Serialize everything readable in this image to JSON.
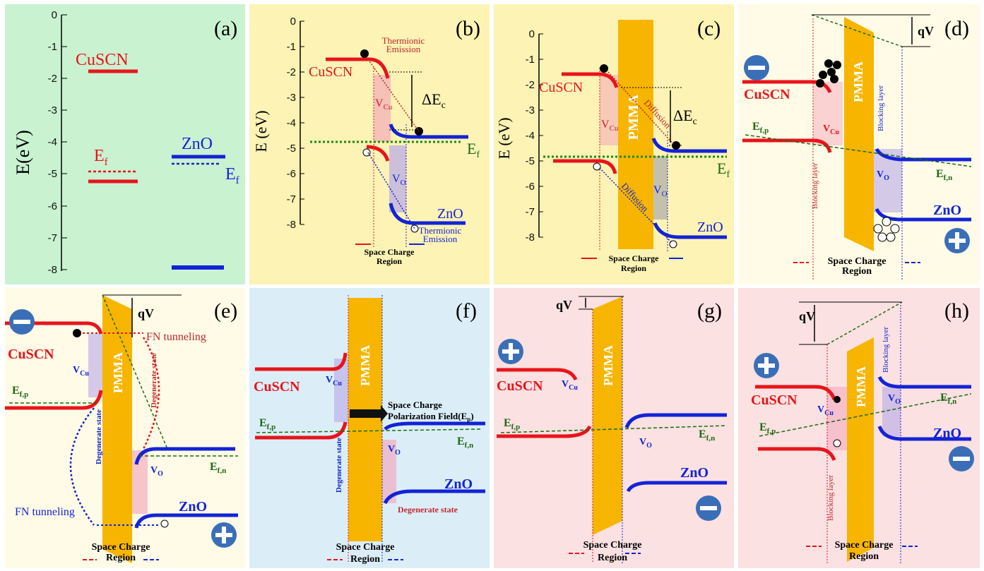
{
  "panels": {
    "a": {
      "label": "(a)",
      "bg": "#c9f2d1",
      "axis_title": "E(eV)",
      "ticks": [
        "0",
        "-1",
        "-2",
        "-3",
        "-4",
        "-5",
        "-6",
        "-7",
        "-8"
      ],
      "cuscn": "CuSCN",
      "ef": "E",
      "ef_sub": "f",
      "zno": "ZnO",
      "ef2": "E",
      "ef2_sub": "f"
    },
    "b": {
      "label": "(b)",
      "bg": "#fdf3b4",
      "axis_title": "E (eV)",
      "ticks": [
        "0",
        "-1",
        "-2",
        "-3",
        "-4",
        "-5",
        "-6",
        "-7",
        "-8"
      ],
      "cuscn": "CuSCN",
      "zno": "ZnO",
      "ef": "E",
      "ef_sub": "f",
      "thermionic_top": [
        "Thermionic",
        "Emission"
      ],
      "thermionic_bottom": [
        "Thermionic",
        "Emission"
      ],
      "delta": "ΔE",
      "delta_sub": "c",
      "vcu": "V",
      "vcu_sub": "Cu",
      "vo": "V",
      "vo_sub": "O",
      "scr": [
        "Space Charge",
        "Region"
      ]
    },
    "c": {
      "label": "(c)",
      "bg": "#fdf3b4",
      "axis_title": "E (eV)",
      "ticks": [
        "0",
        "-1",
        "-2",
        "-3",
        "-4",
        "-5",
        "-6",
        "-7",
        "-8"
      ],
      "cuscn": "CuSCN",
      "zno": "ZnO",
      "ef": "E",
      "ef_sub": "f",
      "pmma": "PMMA",
      "diff1": "Diffusion",
      "diff2": "Diffusion",
      "delta": "ΔE",
      "delta_sub": "c",
      "vcu": "V",
      "vcu_sub": "Cu",
      "vo": "V",
      "vo_sub": "O",
      "scr": [
        "Space Charge",
        "Region"
      ]
    },
    "d": {
      "label": "(d)",
      "bg": "#fffbe6",
      "qv": "qV",
      "cuscn": "CuSCN",
      "zno": "ZnO",
      "pmma": "PMMA",
      "efp": "E",
      "efp_sub": "f,p",
      "efn": "E",
      "efn_sub": "f,n",
      "block_left": "Blocking layer",
      "block_right": "Blocking layer",
      "vcu": "V",
      "vcu_sub": "Cu",
      "vo": "V",
      "vo_sub": "O",
      "scr": [
        "Space Charge",
        "Region"
      ]
    },
    "e": {
      "label": "(e)",
      "bg": "#fffbe6",
      "qv": "qV",
      "cuscn": "CuSCN",
      "zno": "ZnO",
      "pmma": "PMMA",
      "efp": "E",
      "efp_sub": "f,p",
      "efn": "E",
      "efn_sub": "f,n",
      "fn_top": "FN tunneling",
      "fn_bottom": "FN tunneling",
      "degen_left": "Degenerate state",
      "degen_right": "Degenerate state",
      "vcu": "V",
      "vcu_sub": "Cu",
      "vo": "V",
      "vo_sub": "O",
      "scr": [
        "Space Charge",
        "Region"
      ]
    },
    "f": {
      "label": "(f)",
      "bg": "#dbeef8",
      "cuscn": "CuSCN",
      "zno": "ZnO",
      "pmma": "PMMA",
      "efp": "E",
      "efp_sub": "f,p",
      "efn": "E",
      "efn_sub": "f,n",
      "field": [
        "Space Charge",
        "Polarization Field(E"
      ],
      "field_sub": "p",
      "degen_left": "Degenerate state",
      "degen_right": "Degenerate state",
      "vcu": "V",
      "vcu_sub": "Cu",
      "vo": "V",
      "vo_sub": "O",
      "scr": [
        "Space Charge",
        "Region"
      ]
    },
    "g": {
      "label": "(g)",
      "bg": "#fbe1e1",
      "qv": "qV",
      "cuscn": "CuSCN",
      "zno": "ZnO",
      "pmma": "PMMA",
      "efp": "E",
      "efp_sub": "f,p",
      "efn": "E",
      "efn_sub": "f,n",
      "vcu": "V",
      "vcu_sub": "Cu",
      "vo": "V",
      "vo_sub": "O",
      "scr": [
        "Space Charge",
        "Region"
      ]
    },
    "h": {
      "label": "(h)",
      "bg": "#fbe1e1",
      "qv": "qV",
      "cuscn": "CuSCN",
      "zno": "ZnO",
      "pmma": "PMMA",
      "efp": "E",
      "efp_sub": "f,p",
      "efn": "E",
      "efn_sub": "f,n",
      "block_left": "Blocking layer",
      "block_right": "Blocking layer",
      "vcu": "V",
      "vcu_sub": "Cu",
      "vo": "V",
      "vo_sub": "O",
      "scr": [
        "Space Charge",
        "Region"
      ]
    }
  },
  "colors": {
    "red": "#e8141b",
    "blue": "#1323d6",
    "green": "#1c6b12",
    "pmma": "#f7b500",
    "pink": "#f2a0b8",
    "lilac": "#b7a8e8"
  }
}
